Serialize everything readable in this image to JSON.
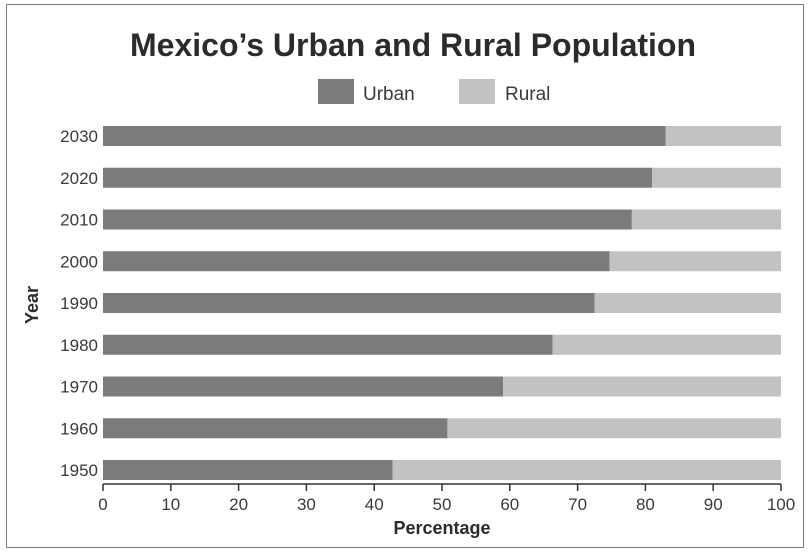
{
  "chart_data": {
    "type": "bar",
    "orientation": "horizontal",
    "stacked": true,
    "title": "Mexico’s Urban and Rural Population",
    "xlabel": "Percentage",
    "ylabel": "Year",
    "xlim": [
      0,
      100
    ],
    "xticks": [
      0,
      10,
      20,
      30,
      40,
      50,
      60,
      70,
      80,
      90,
      100
    ],
    "categories": [
      "2030",
      "2020",
      "2010",
      "2000",
      "1990",
      "1980",
      "1970",
      "1960",
      "1950"
    ],
    "series": [
      {
        "name": "Urban",
        "color": "#7b7b7b",
        "values": [
          83,
          81,
          78,
          74.7,
          72.5,
          66.3,
          59,
          50.8,
          42.7
        ]
      },
      {
        "name": "Rural",
        "color": "#c2c2c2",
        "values": [
          17,
          19,
          22,
          25.3,
          27.5,
          33.7,
          41,
          49.2,
          57.3
        ]
      }
    ],
    "legend": "top-center",
    "grid": false
  }
}
